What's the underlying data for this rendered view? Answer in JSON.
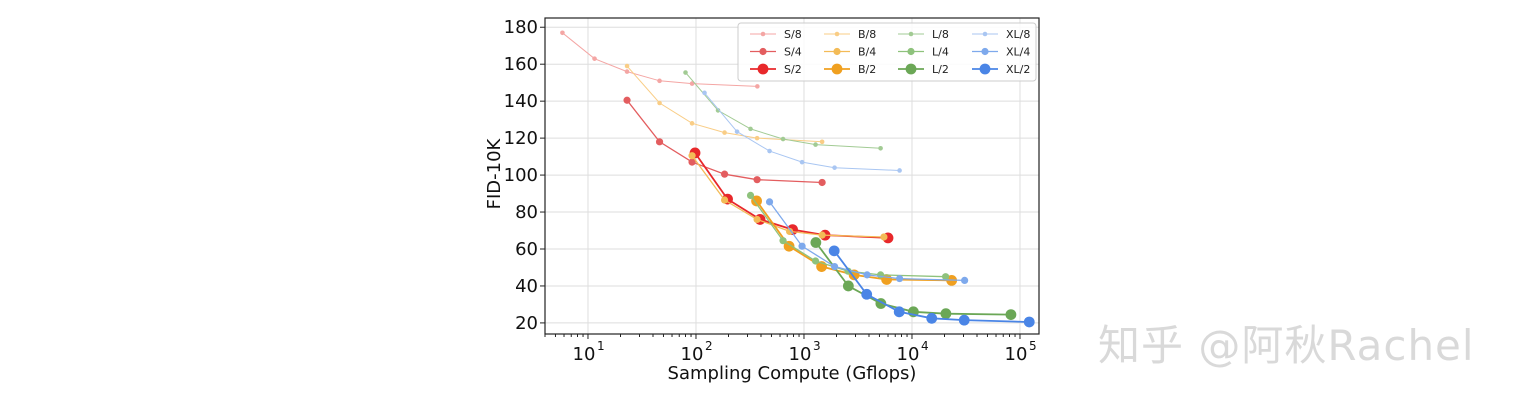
{
  "watermark": "知乎 @阿秋Rachel",
  "chart_data": {
    "type": "line",
    "title": "",
    "xlabel": "Sampling Compute (Gflops)",
    "ylabel": "FID-10K",
    "xscale": "log",
    "xlim": [
      4,
      150000
    ],
    "ylim": [
      14,
      185
    ],
    "xticks": [
      10,
      100,
      1000,
      10000,
      100000
    ],
    "xtick_labels": [
      {
        "base": "10",
        "exp": "1"
      },
      {
        "base": "10",
        "exp": "2"
      },
      {
        "base": "10",
        "exp": "3"
      },
      {
        "base": "10",
        "exp": "4"
      },
      {
        "base": "10",
        "exp": "5"
      }
    ],
    "yticks": [
      20,
      40,
      60,
      80,
      100,
      120,
      140,
      160,
      180
    ],
    "grid": true,
    "legend_position": "top-right",
    "legend_columns": 4,
    "series": [
      {
        "name": "S/8",
        "color": "#f4a6a4",
        "size": "small",
        "x": [
          5.8,
          11.5,
          23,
          46,
          92,
          370
        ],
        "y": [
          177,
          163,
          156,
          151,
          149.5,
          148
        ]
      },
      {
        "name": "S/4",
        "color": "#e35d5f",
        "size": "medium",
        "x": [
          23,
          46,
          92,
          184,
          368,
          1472
        ],
        "y": [
          140.5,
          118,
          107,
          100.5,
          97.5,
          96
        ]
      },
      {
        "name": "S/2",
        "color": "#e8282b",
        "size": "large",
        "x": [
          98,
          196,
          392,
          784,
          1568,
          6000
        ],
        "y": [
          112,
          87,
          76,
          70.5,
          67.5,
          66
        ]
      },
      {
        "name": "B/8",
        "color": "#f9cd86",
        "size": "small",
        "x": [
          23,
          46,
          92,
          184,
          368,
          1472
        ],
        "y": [
          159,
          139,
          128,
          123,
          120,
          118
        ]
      },
      {
        "name": "B/4",
        "color": "#f3bb57",
        "size": "medium",
        "x": [
          92,
          184,
          368,
          736,
          1472,
          5500
        ],
        "y": [
          110.5,
          86.5,
          76,
          69.5,
          67.5,
          66.5
        ]
      },
      {
        "name": "B/2",
        "color": "#f0a020",
        "size": "large",
        "x": [
          364,
          728,
          1456,
          2912,
          5824,
          23296
        ],
        "y": [
          86,
          61.5,
          50.5,
          46,
          43.5,
          43
        ]
      },
      {
        "name": "L/8",
        "color": "#a2cb94",
        "size": "small",
        "x": [
          80,
          160,
          320,
          640,
          1280,
          5120
        ],
        "y": [
          155.5,
          135,
          125,
          119.5,
          116.5,
          114.5
        ]
      },
      {
        "name": "L/4",
        "color": "#8ec27c",
        "size": "medium",
        "x": [
          320,
          640,
          1280,
          2560,
          5120,
          20480
        ],
        "y": [
          89,
          64.5,
          53.5,
          48,
          46,
          45
        ]
      },
      {
        "name": "L/2",
        "color": "#6ba756",
        "size": "large",
        "x": [
          1288,
          2576,
          5152,
          10304,
          20608,
          82432
        ],
        "y": [
          63.5,
          40,
          30.5,
          26,
          25,
          24.5
        ]
      },
      {
        "name": "XL/8",
        "color": "#a9c6f2",
        "size": "small",
        "x": [
          120,
          240,
          480,
          960,
          1920,
          7680
        ],
        "y": [
          144.5,
          123.5,
          113,
          107,
          104,
          102.5
        ]
      },
      {
        "name": "XL/4",
        "color": "#7ea9ec",
        "size": "medium",
        "x": [
          480,
          960,
          1920,
          3840,
          7680,
          30720
        ],
        "y": [
          85.5,
          61.5,
          50.5,
          46,
          44,
          43
        ]
      },
      {
        "name": "XL/2",
        "color": "#4a85e6",
        "size": "large",
        "x": [
          1904,
          3808,
          7616,
          15232,
          30464,
          121856
        ],
        "y": [
          59,
          35.5,
          26,
          22.5,
          21.5,
          20.5
        ]
      }
    ]
  }
}
